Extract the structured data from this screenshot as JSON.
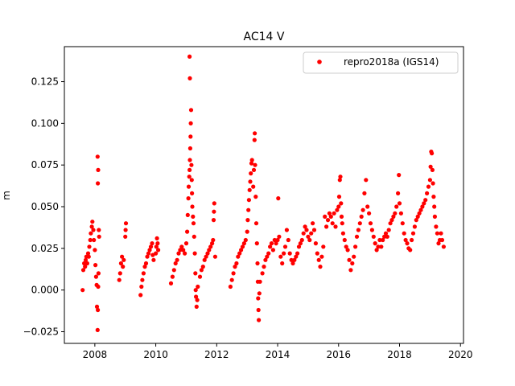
{
  "chart_data": {
    "type": "scatter",
    "title": "AC14 V",
    "xlabel": "",
    "ylabel": "m",
    "xlim": [
      2007.0,
      2020.1
    ],
    "ylim": [
      -0.032,
      0.146
    ],
    "x_ticks": [
      2008,
      2010,
      2012,
      2014,
      2016,
      2018,
      2020
    ],
    "y_ticks": [
      -0.025,
      0.0,
      0.025,
      0.05,
      0.075,
      0.1,
      0.125
    ],
    "x_tick_labels": [
      "2008",
      "2010",
      "2012",
      "2014",
      "2016",
      "2018",
      "2020"
    ],
    "y_tick_labels": [
      "−0.025",
      "0.000",
      "0.025",
      "0.050",
      "0.075",
      "0.100",
      "0.125"
    ],
    "grid": false,
    "legend_position": "top-right",
    "series": [
      {
        "name": "repro2018a (IGS14)",
        "color": "#ff0000",
        "marker": "circle",
        "points": [
          [
            2007.6,
            0.0
          ],
          [
            2007.62,
            0.012
          ],
          [
            2007.65,
            0.016
          ],
          [
            2007.68,
            0.014
          ],
          [
            2007.7,
            0.018
          ],
          [
            2007.72,
            0.02
          ],
          [
            2007.75,
            0.016
          ],
          [
            2007.78,
            0.022
          ],
          [
            2007.8,
            0.02
          ],
          [
            2007.82,
            0.026
          ],
          [
            2007.85,
            0.03
          ],
          [
            2007.87,
            0.034
          ],
          [
            2007.9,
            0.038
          ],
          [
            2007.92,
            0.041
          ],
          [
            2007.95,
            0.036
          ],
          [
            2007.97,
            0.03
          ],
          [
            2008.0,
            0.024
          ],
          [
            2008.02,
            0.015
          ],
          [
            2008.04,
            0.008
          ],
          [
            2008.06,
            0.003
          ],
          [
            2008.07,
            -0.01
          ],
          [
            2008.09,
            -0.024
          ],
          [
            2008.1,
            -0.012
          ],
          [
            2008.11,
            0.002
          ],
          [
            2008.12,
            0.01
          ],
          [
            2008.1,
            0.064
          ],
          [
            2008.11,
            0.072
          ],
          [
            2008.09,
            0.08
          ],
          [
            2008.13,
            0.036
          ],
          [
            2008.14,
            0.032
          ],
          [
            2008.8,
            0.006
          ],
          [
            2008.83,
            0.01
          ],
          [
            2008.86,
            0.016
          ],
          [
            2008.89,
            0.02
          ],
          [
            2008.92,
            0.014
          ],
          [
            2008.95,
            0.018
          ],
          [
            2009.0,
            0.032
          ],
          [
            2009.01,
            0.036
          ],
          [
            2009.02,
            0.04
          ],
          [
            2009.5,
            -0.003
          ],
          [
            2009.53,
            0.002
          ],
          [
            2009.56,
            0.006
          ],
          [
            2009.6,
            0.01
          ],
          [
            2009.64,
            0.014
          ],
          [
            2009.68,
            0.016
          ],
          [
            2009.72,
            0.02
          ],
          [
            2009.76,
            0.022
          ],
          [
            2009.8,
            0.024
          ],
          [
            2009.84,
            0.026
          ],
          [
            2009.88,
            0.028
          ],
          [
            2009.9,
            0.021
          ],
          [
            2009.93,
            0.018
          ],
          [
            2010.0,
            0.022
          ],
          [
            2010.02,
            0.026
          ],
          [
            2010.04,
            0.031
          ],
          [
            2010.06,
            0.028
          ],
          [
            2010.08,
            0.024
          ],
          [
            2010.5,
            0.004
          ],
          [
            2010.55,
            0.008
          ],
          [
            2010.6,
            0.012
          ],
          [
            2010.65,
            0.016
          ],
          [
            2010.7,
            0.018
          ],
          [
            2010.75,
            0.022
          ],
          [
            2010.8,
            0.024
          ],
          [
            2010.85,
            0.026
          ],
          [
            2010.9,
            0.024
          ],
          [
            2010.95,
            0.022
          ],
          [
            2011.0,
            0.028
          ],
          [
            2011.03,
            0.035
          ],
          [
            2011.05,
            0.045
          ],
          [
            2011.07,
            0.055
          ],
          [
            2011.08,
            0.062
          ],
          [
            2011.1,
            0.068
          ],
          [
            2011.11,
            0.072
          ],
          [
            2011.12,
            0.078
          ],
          [
            2011.13,
            0.085
          ],
          [
            2011.14,
            0.092
          ],
          [
            2011.15,
            0.1
          ],
          [
            2011.16,
            0.108
          ],
          [
            2011.12,
            0.127
          ],
          [
            2011.11,
            0.14
          ],
          [
            2011.17,
            0.075
          ],
          [
            2011.18,
            0.066
          ],
          [
            2011.19,
            0.058
          ],
          [
            2011.2,
            0.05
          ],
          [
            2011.22,
            0.044
          ],
          [
            2011.24,
            0.04
          ],
          [
            2011.26,
            0.032
          ],
          [
            2011.28,
            0.022
          ],
          [
            2011.3,
            0.01
          ],
          [
            2011.31,
            0.0
          ],
          [
            2011.32,
            -0.004
          ],
          [
            2011.34,
            -0.01
          ],
          [
            2011.36,
            -0.006
          ],
          [
            2011.38,
            0.002
          ],
          [
            2011.45,
            0.008
          ],
          [
            2011.5,
            0.012
          ],
          [
            2011.55,
            0.014
          ],
          [
            2011.6,
            0.018
          ],
          [
            2011.65,
            0.02
          ],
          [
            2011.7,
            0.022
          ],
          [
            2011.75,
            0.024
          ],
          [
            2011.8,
            0.026
          ],
          [
            2011.85,
            0.028
          ],
          [
            2011.88,
            0.03
          ],
          [
            2011.9,
            0.042
          ],
          [
            2011.91,
            0.047
          ],
          [
            2011.92,
            0.052
          ],
          [
            2011.95,
            0.02
          ],
          [
            2012.45,
            0.002
          ],
          [
            2012.5,
            0.006
          ],
          [
            2012.55,
            0.01
          ],
          [
            2012.6,
            0.014
          ],
          [
            2012.65,
            0.016
          ],
          [
            2012.7,
            0.02
          ],
          [
            2012.75,
            0.022
          ],
          [
            2012.8,
            0.024
          ],
          [
            2012.85,
            0.026
          ],
          [
            2012.9,
            0.028
          ],
          [
            2012.95,
            0.03
          ],
          [
            2013.0,
            0.035
          ],
          [
            2013.02,
            0.042
          ],
          [
            2013.04,
            0.048
          ],
          [
            2013.06,
            0.054
          ],
          [
            2013.08,
            0.06
          ],
          [
            2013.1,
            0.065
          ],
          [
            2013.12,
            0.07
          ],
          [
            2013.14,
            0.076
          ],
          [
            2013.16,
            0.078
          ],
          [
            2013.2,
            0.062
          ],
          [
            2013.22,
            0.072
          ],
          [
            2013.24,
            0.09
          ],
          [
            2013.25,
            0.094
          ],
          [
            2013.26,
            0.075
          ],
          [
            2013.28,
            0.056
          ],
          [
            2013.3,
            0.04
          ],
          [
            2013.32,
            0.028
          ],
          [
            2013.34,
            0.016
          ],
          [
            2013.35,
            0.005
          ],
          [
            2013.36,
            -0.005
          ],
          [
            2013.37,
            -0.012
          ],
          [
            2013.38,
            -0.018
          ],
          [
            2013.4,
            -0.002
          ],
          [
            2013.42,
            0.005
          ],
          [
            2013.5,
            0.01
          ],
          [
            2013.55,
            0.014
          ],
          [
            2013.6,
            0.018
          ],
          [
            2013.65,
            0.02
          ],
          [
            2013.7,
            0.022
          ],
          [
            2013.75,
            0.026
          ],
          [
            2013.8,
            0.028
          ],
          [
            2013.85,
            0.024
          ],
          [
            2013.9,
            0.03
          ],
          [
            2013.95,
            0.028
          ],
          [
            2014.0,
            0.03
          ],
          [
            2014.02,
            0.055
          ],
          [
            2014.05,
            0.032
          ],
          [
            2014.1,
            0.02
          ],
          [
            2014.15,
            0.016
          ],
          [
            2014.2,
            0.022
          ],
          [
            2014.25,
            0.026
          ],
          [
            2014.3,
            0.036
          ],
          [
            2014.35,
            0.03
          ],
          [
            2014.4,
            0.022
          ],
          [
            2014.45,
            0.018
          ],
          [
            2014.5,
            0.016
          ],
          [
            2014.55,
            0.018
          ],
          [
            2014.6,
            0.02
          ],
          [
            2014.65,
            0.022
          ],
          [
            2014.7,
            0.026
          ],
          [
            2014.75,
            0.028
          ],
          [
            2014.8,
            0.03
          ],
          [
            2014.85,
            0.034
          ],
          [
            2014.9,
            0.038
          ],
          [
            2014.95,
            0.036
          ],
          [
            2015.0,
            0.032
          ],
          [
            2015.05,
            0.03
          ],
          [
            2015.1,
            0.034
          ],
          [
            2015.15,
            0.04
          ],
          [
            2015.2,
            0.036
          ],
          [
            2015.25,
            0.028
          ],
          [
            2015.3,
            0.022
          ],
          [
            2015.35,
            0.018
          ],
          [
            2015.4,
            0.014
          ],
          [
            2015.45,
            0.02
          ],
          [
            2015.5,
            0.026
          ],
          [
            2015.55,
            0.044
          ],
          [
            2015.6,
            0.038
          ],
          [
            2015.65,
            0.042
          ],
          [
            2015.7,
            0.046
          ],
          [
            2015.75,
            0.044
          ],
          [
            2015.8,
            0.04
          ],
          [
            2015.85,
            0.046
          ],
          [
            2015.9,
            0.038
          ],
          [
            2015.95,
            0.048
          ],
          [
            2016.0,
            0.05
          ],
          [
            2016.02,
            0.056
          ],
          [
            2016.04,
            0.066
          ],
          [
            2016.06,
            0.068
          ],
          [
            2016.08,
            0.052
          ],
          [
            2016.1,
            0.044
          ],
          [
            2016.12,
            0.04
          ],
          [
            2016.15,
            0.034
          ],
          [
            2016.2,
            0.03
          ],
          [
            2016.25,
            0.026
          ],
          [
            2016.3,
            0.024
          ],
          [
            2016.35,
            0.018
          ],
          [
            2016.4,
            0.012
          ],
          [
            2016.45,
            0.016
          ],
          [
            2016.5,
            0.02
          ],
          [
            2016.55,
            0.026
          ],
          [
            2016.6,
            0.032
          ],
          [
            2016.65,
            0.036
          ],
          [
            2016.7,
            0.04
          ],
          [
            2016.75,
            0.044
          ],
          [
            2016.8,
            0.048
          ],
          [
            2016.85,
            0.058
          ],
          [
            2016.9,
            0.066
          ],
          [
            2016.95,
            0.05
          ],
          [
            2017.0,
            0.046
          ],
          [
            2017.05,
            0.04
          ],
          [
            2017.1,
            0.036
          ],
          [
            2017.15,
            0.032
          ],
          [
            2017.2,
            0.028
          ],
          [
            2017.25,
            0.024
          ],
          [
            2017.3,
            0.026
          ],
          [
            2017.35,
            0.03
          ],
          [
            2017.4,
            0.026
          ],
          [
            2017.45,
            0.03
          ],
          [
            2017.5,
            0.032
          ],
          [
            2017.55,
            0.034
          ],
          [
            2017.6,
            0.032
          ],
          [
            2017.65,
            0.036
          ],
          [
            2017.7,
            0.04
          ],
          [
            2017.75,
            0.042
          ],
          [
            2017.8,
            0.044
          ],
          [
            2017.85,
            0.046
          ],
          [
            2017.9,
            0.05
          ],
          [
            2017.95,
            0.058
          ],
          [
            2017.98,
            0.069
          ],
          [
            2018.0,
            0.052
          ],
          [
            2018.05,
            0.046
          ],
          [
            2018.1,
            0.04
          ],
          [
            2018.15,
            0.034
          ],
          [
            2018.2,
            0.03
          ],
          [
            2018.25,
            0.028
          ],
          [
            2018.3,
            0.025
          ],
          [
            2018.35,
            0.024
          ],
          [
            2018.4,
            0.03
          ],
          [
            2018.45,
            0.034
          ],
          [
            2018.5,
            0.038
          ],
          [
            2018.55,
            0.042
          ],
          [
            2018.6,
            0.044
          ],
          [
            2018.65,
            0.046
          ],
          [
            2018.7,
            0.048
          ],
          [
            2018.75,
            0.05
          ],
          [
            2018.8,
            0.052
          ],
          [
            2018.85,
            0.054
          ],
          [
            2018.9,
            0.058
          ],
          [
            2018.95,
            0.062
          ],
          [
            2019.0,
            0.066
          ],
          [
            2019.02,
            0.074
          ],
          [
            2019.04,
            0.083
          ],
          [
            2019.06,
            0.082
          ],
          [
            2019.08,
            0.072
          ],
          [
            2019.1,
            0.064
          ],
          [
            2019.12,
            0.056
          ],
          [
            2019.14,
            0.05
          ],
          [
            2019.16,
            0.044
          ],
          [
            2019.2,
            0.038
          ],
          [
            2019.24,
            0.034
          ],
          [
            2019.28,
            0.028
          ],
          [
            2019.32,
            0.03
          ],
          [
            2019.36,
            0.034
          ],
          [
            2019.4,
            0.03
          ],
          [
            2019.45,
            0.026
          ]
        ]
      }
    ]
  }
}
